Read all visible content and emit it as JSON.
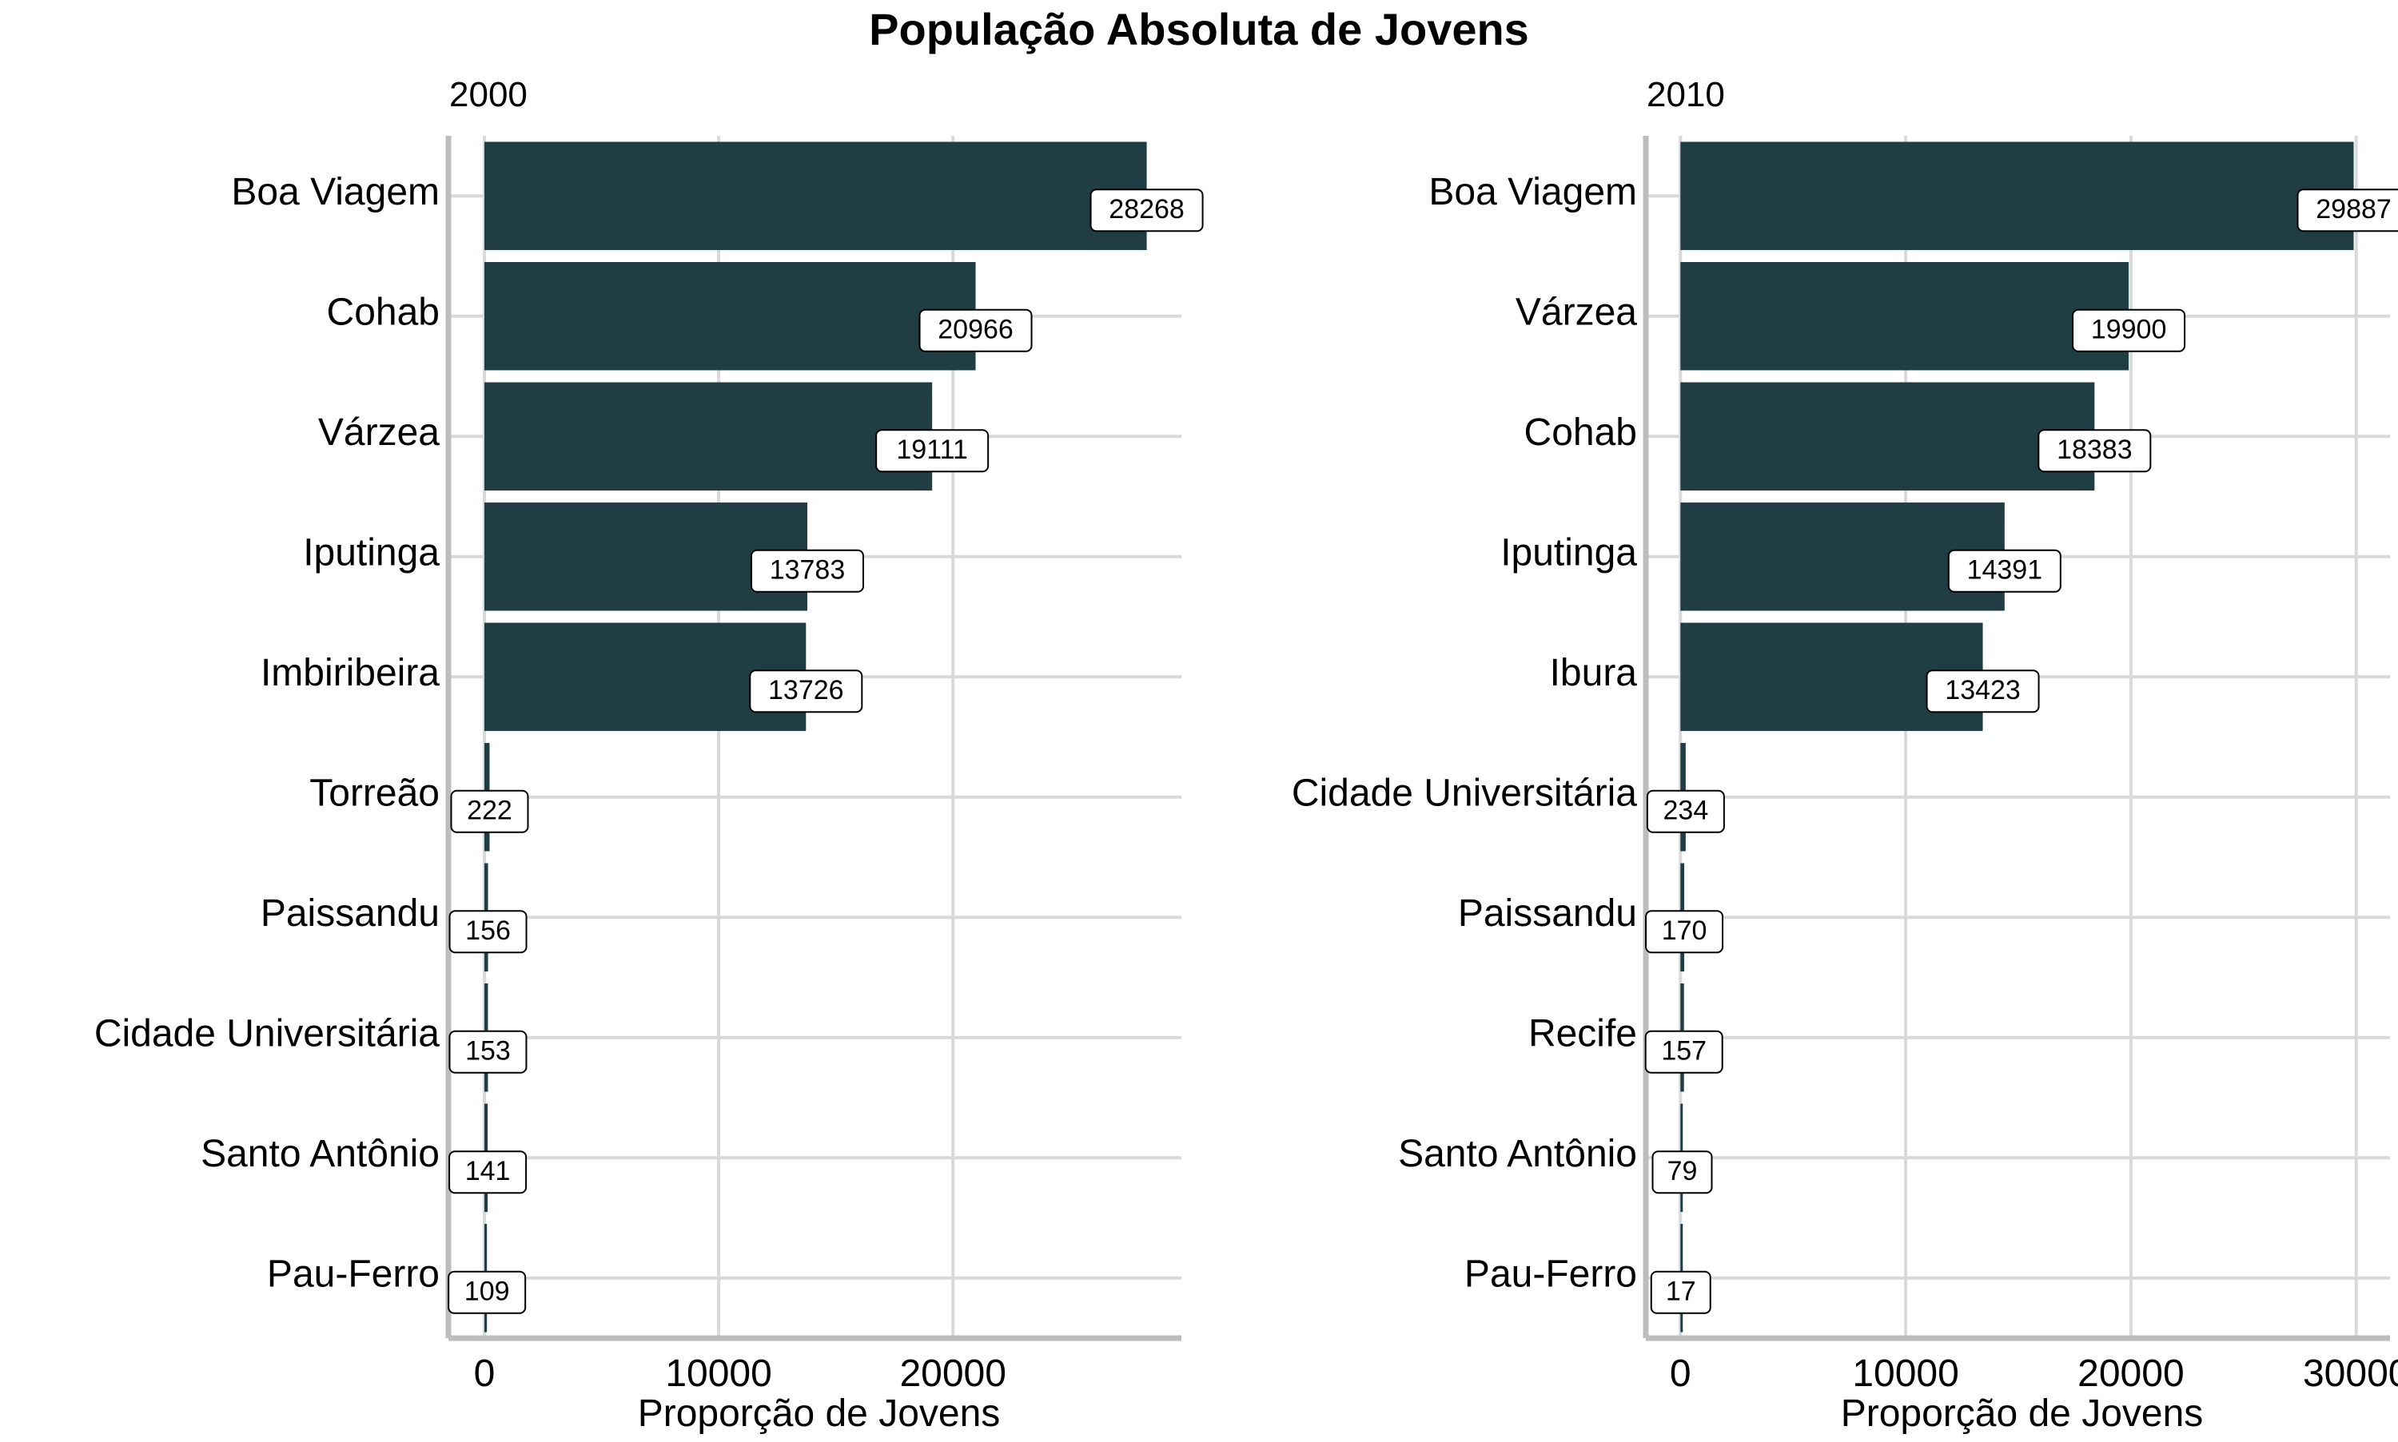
{
  "title": "População Absoluta de Jovens",
  "chart_data": [
    {
      "type": "bar",
      "orientation": "horizontal",
      "panel": "2000",
      "categories": [
        "Boa Viagem",
        "Cohab",
        "Várzea",
        "Iputinga",
        "Imbiribeira",
        "Torreão",
        "Paissandu",
        "Cidade Universitária",
        "Santo Antônio",
        "Pau-Ferro"
      ],
      "values": [
        28268,
        20966,
        19111,
        13783,
        13726,
        222,
        156,
        153,
        141,
        109
      ],
      "data_labels": [
        "28268",
        "20966",
        "19111",
        "13783",
        "13726",
        "222",
        "156",
        "153",
        "141",
        "109"
      ],
      "xlabel": "Proporção de Jovens",
      "ylabel": "",
      "xlim": [
        -1500,
        29750
      ],
      "xticks": [
        0,
        10000,
        20000
      ],
      "xtick_labels": [
        "0",
        "10000",
        "20000"
      ],
      "grid": true,
      "bar_color": "#1f3d43"
    },
    {
      "type": "bar",
      "orientation": "horizontal",
      "panel": "2010",
      "categories": [
        "Boa Viagem",
        "Várzea",
        "Cohab",
        "Iputinga",
        "Ibura",
        "Cidade Universitária",
        "Paissandu",
        "Recife",
        "Santo Antônio",
        "Pau-Ferro"
      ],
      "values": [
        29887,
        19900,
        18383,
        14391,
        13423,
        234,
        170,
        157,
        79,
        17
      ],
      "data_labels": [
        "29887",
        "19900",
        "18383",
        "14391",
        "13423",
        "234",
        "170",
        "157",
        "79",
        "17"
      ],
      "xlabel": "Proporção de Jovens",
      "ylabel": "",
      "xlim": [
        -1500,
        31500
      ],
      "xticks": [
        0,
        10000,
        20000,
        30000
      ],
      "xtick_labels": [
        "0",
        "10000",
        "20000",
        "30000"
      ],
      "grid": true,
      "bar_color": "#1f3d43"
    }
  ]
}
